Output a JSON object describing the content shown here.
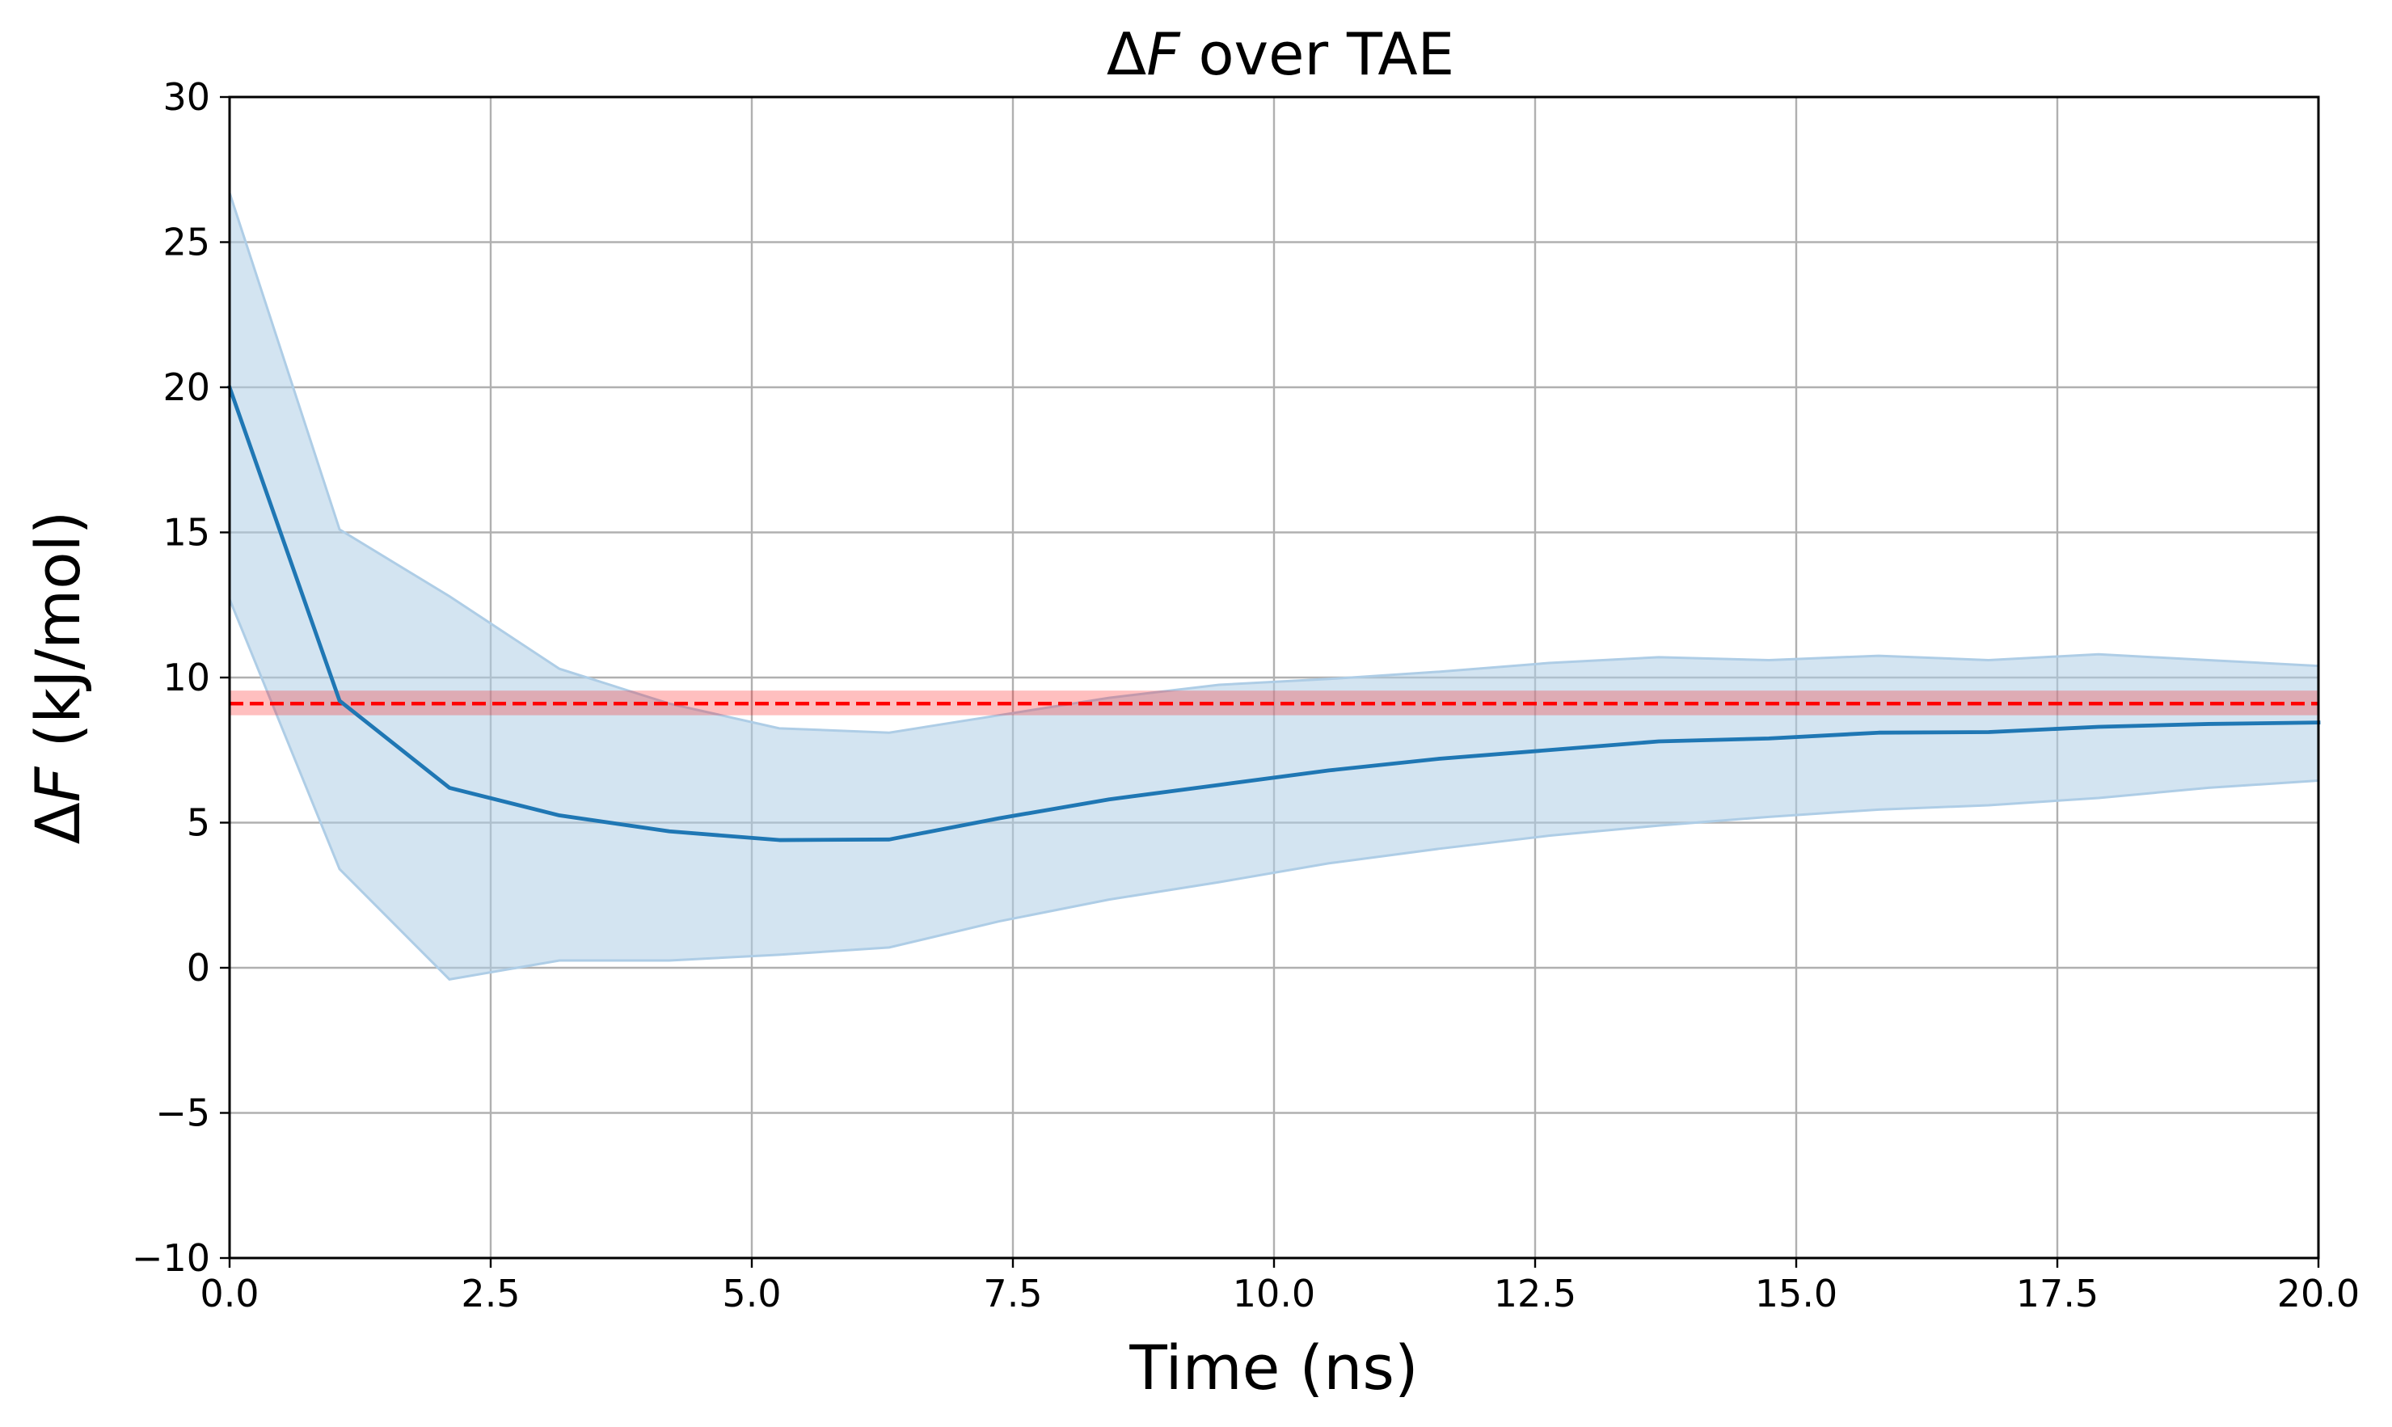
{
  "chart_data": {
    "type": "line",
    "title": {
      "delta": "Δ",
      "var": "F",
      "rest": " over TAE"
    },
    "xlabel": "Time (ns)",
    "ylabel": {
      "delta": "Δ",
      "var": "F",
      "rest": " (kJ/mol)"
    },
    "xlim": [
      0,
      20
    ],
    "ylim": [
      -10,
      30
    ],
    "x_ticks": [
      0,
      2.5,
      5,
      7.5,
      10,
      12.5,
      15,
      17.5,
      20
    ],
    "x_tick_labels": [
      "0.0",
      "2.5",
      "5.0",
      "7.5",
      "10.0",
      "12.5",
      "15.0",
      "17.5",
      "20.0"
    ],
    "y_ticks": [
      -10,
      -5,
      0,
      5,
      10,
      15,
      20,
      25,
      30
    ],
    "y_tick_labels": [
      "−10",
      "−5",
      "0",
      "5",
      "10",
      "15",
      "20",
      "25",
      "30"
    ],
    "grid": true,
    "series": [
      {
        "x": [
          0,
          1.053,
          2.105,
          3.158,
          4.211,
          5.263,
          6.316,
          7.368,
          8.421,
          9.474,
          10.526,
          11.579,
          12.632,
          13.684,
          14.737,
          15.789,
          16.842,
          17.895,
          18.947,
          20
        ],
        "y": [
          20.0,
          9.2,
          6.2,
          5.25,
          4.7,
          4.4,
          4.42,
          5.15,
          5.8,
          6.3,
          6.8,
          7.2,
          7.5,
          7.8,
          7.9,
          8.1,
          8.12,
          8.3,
          8.4,
          8.45
        ],
        "lower": [
          12.7,
          3.4,
          -0.4,
          0.25,
          0.25,
          0.45,
          0.7,
          1.6,
          2.35,
          2.95,
          3.6,
          4.1,
          4.55,
          4.9,
          5.2,
          5.45,
          5.6,
          5.85,
          6.2,
          6.45
        ],
        "upper": [
          26.7,
          15.1,
          12.8,
          10.3,
          9.1,
          8.25,
          8.1,
          8.7,
          9.3,
          9.75,
          9.95,
          10.2,
          10.5,
          10.7,
          10.6,
          10.75,
          10.6,
          10.8,
          10.6,
          10.4
        ],
        "color": "#1f77b4",
        "band_color": "#aecde6"
      }
    ],
    "reference_line": {
      "y": 9.1,
      "band": [
        8.7,
        9.55
      ],
      "color": "#ff0000",
      "style": "dashed"
    }
  }
}
